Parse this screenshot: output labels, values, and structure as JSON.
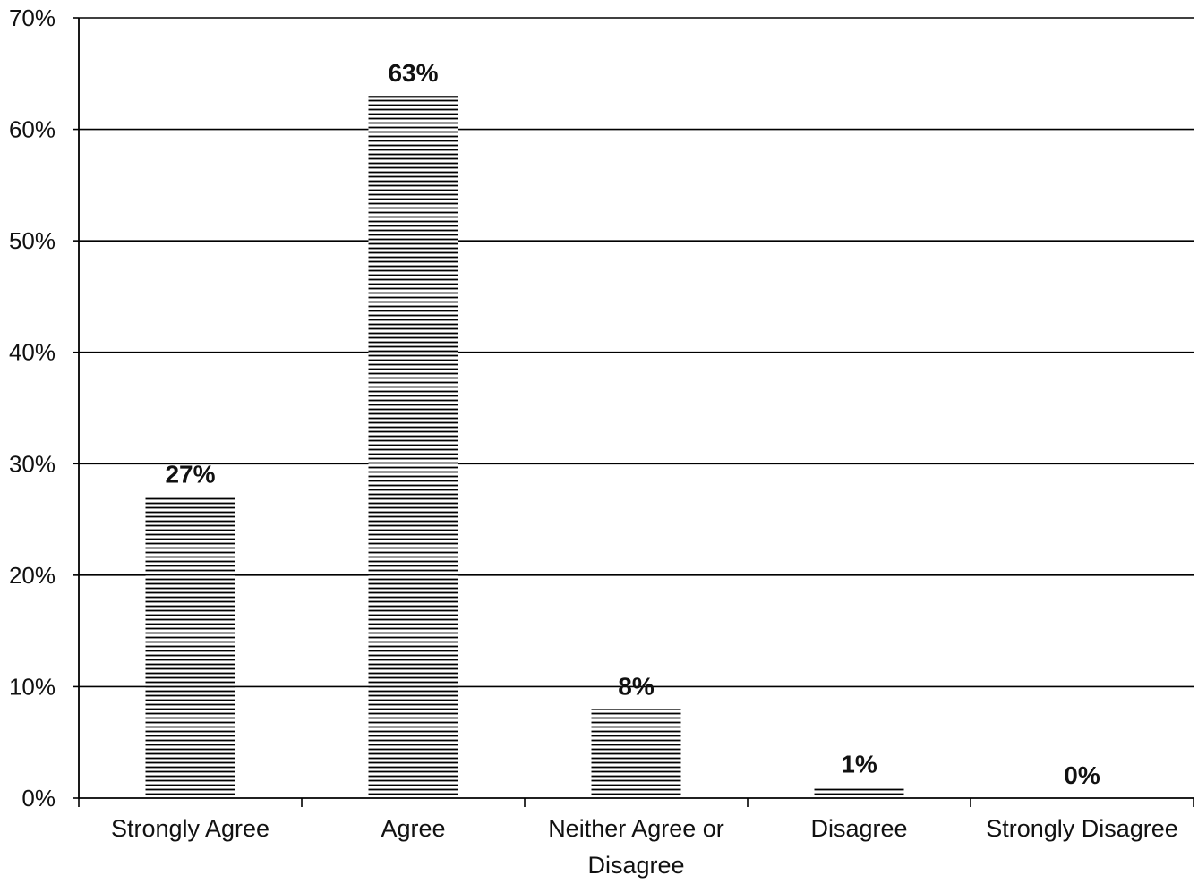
{
  "chart_data": {
    "type": "bar",
    "categories": [
      "Strongly Agree",
      "Agree",
      "Neither Agree or Disagree",
      "Disagree",
      "Strongly Disagree"
    ],
    "category_lines": [
      [
        "Strongly Agree"
      ],
      [
        "Agree"
      ],
      [
        "Neither Agree or",
        "Disagree"
      ],
      [
        "Disagree"
      ],
      [
        "Strongly Disagree"
      ]
    ],
    "values": [
      27,
      63,
      8,
      1,
      0
    ],
    "data_labels": [
      "27%",
      "63%",
      "8%",
      "1%",
      "0%"
    ],
    "yticks": [
      0,
      10,
      20,
      30,
      40,
      50,
      60,
      70
    ],
    "ytick_labels": [
      "0%",
      "10%",
      "20%",
      "30%",
      "40%",
      "50%",
      "60%",
      "70%"
    ],
    "ylim": [
      0,
      70
    ],
    "grid": true,
    "bar_fill": "horizontal-hatch",
    "colors": {
      "line": "#000000",
      "background": "#ffffff"
    }
  }
}
